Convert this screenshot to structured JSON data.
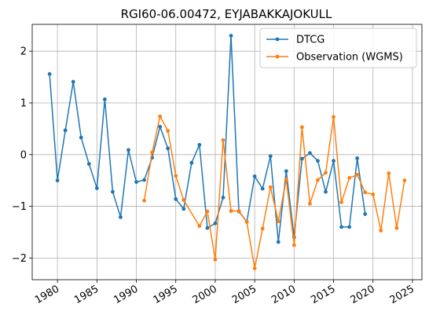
{
  "chart_data": {
    "type": "line",
    "title": "RGI60-06.00472, EYJABAKKAJOKULL",
    "xlabel": "",
    "ylabel": "",
    "xlim": [
      1976.8,
      2026.2
    ],
    "ylim": [
      -2.42,
      2.52
    ],
    "x_ticks": [
      1980,
      1985,
      1990,
      1995,
      2000,
      2005,
      2010,
      2015,
      2020,
      2025
    ],
    "y_ticks": [
      -2,
      -1,
      0,
      1,
      2
    ],
    "grid": true,
    "legend_position": "top-right",
    "series": [
      {
        "name": "DTCG",
        "color": "#1f77b4",
        "x": [
          1979,
          1980,
          1981,
          1982,
          1983,
          1984,
          1985,
          1986,
          1987,
          1988,
          1989,
          1990,
          1991,
          1992,
          1993,
          1994,
          1995,
          1996,
          1997,
          1998,
          1999,
          2000,
          2001,
          2002,
          2003,
          2004,
          2005,
          2006,
          2007,
          2008,
          2009,
          2010,
          2011,
          2012,
          2013,
          2014,
          2015,
          2016,
          2017,
          2018,
          2019
        ],
        "y": [
          1.56,
          -0.5,
          0.47,
          1.41,
          0.33,
          -0.18,
          -0.65,
          1.07,
          -0.72,
          -1.21,
          0.09,
          -0.53,
          -0.49,
          -0.06,
          0.54,
          0.12,
          -0.86,
          -1.05,
          -0.16,
          0.19,
          -1.42,
          -1.33,
          -0.83,
          2.3,
          -1.1,
          -1.3,
          -0.42,
          -0.66,
          -0.03,
          -1.69,
          -0.32,
          -1.6,
          -0.08,
          0.03,
          -0.12,
          -0.72,
          -0.12,
          -1.4,
          -1.4,
          -0.07,
          -1.15
        ]
      },
      {
        "name": "Observation (WGMS)",
        "color": "#ff7f0e",
        "x": [
          1991,
          1992,
          1993,
          1994,
          1995,
          1996,
          1998,
          1999,
          2000,
          2001,
          2002,
          2003,
          2004,
          2005,
          2006,
          2007,
          2008,
          2009,
          2010,
          2011,
          2012,
          2013,
          2014,
          2015,
          2016,
          2017,
          2018,
          2019,
          2020,
          2021,
          2022,
          2023,
          2024
        ],
        "y": [
          -0.89,
          0.04,
          0.74,
          0.46,
          -0.41,
          -0.88,
          -1.38,
          -1.1,
          -2.03,
          0.28,
          -1.09,
          -1.09,
          -1.3,
          -2.2,
          -1.43,
          -0.63,
          -1.29,
          -0.48,
          -1.75,
          0.53,
          -0.95,
          -0.49,
          -0.35,
          0.73,
          -0.92,
          -0.45,
          -0.39,
          -0.73,
          -0.77,
          -1.47,
          -0.36,
          -1.42,
          -0.5
        ]
      }
    ]
  }
}
